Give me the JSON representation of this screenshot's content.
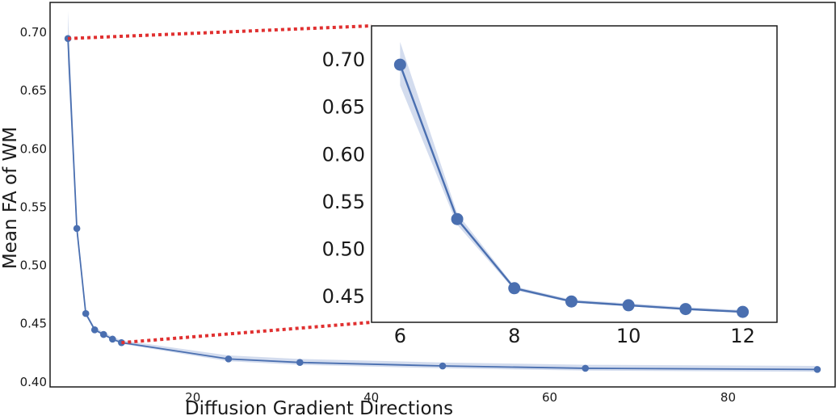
{
  "chart_data": {
    "type": "line",
    "xlabel": "Diffusion Gradient Directions",
    "ylabel": "Mean FA of WM",
    "xlim": [
      4,
      92
    ],
    "ylim": [
      0.395,
      0.725
    ],
    "x_ticks": [
      20,
      40,
      60,
      80
    ],
    "y_ticks": [
      0.4,
      0.45,
      0.5,
      0.55,
      0.6,
      0.65,
      0.7
    ],
    "grid": false,
    "series": [
      {
        "x": [
          6,
          7,
          8,
          9,
          10,
          11,
          12,
          24,
          32,
          48,
          64,
          90
        ],
        "y": [
          0.694,
          0.531,
          0.458,
          0.444,
          0.44,
          0.436,
          0.433,
          0.419,
          0.416,
          0.413,
          0.411,
          0.41
        ],
        "band_low": [
          0.672,
          0.525,
          0.456,
          0.443,
          0.439,
          0.435,
          0.432,
          0.417,
          0.414,
          0.411,
          0.409,
          0.408
        ],
        "band_high": [
          0.718,
          0.537,
          0.46,
          0.446,
          0.442,
          0.438,
          0.435,
          0.422,
          0.419,
          0.416,
          0.414,
          0.413
        ],
        "color": "#4a6fb0",
        "band_color": "#c8d3ea"
      }
    ],
    "inset": {
      "xlim": [
        5.5,
        12.6
      ],
      "ylim": [
        0.422,
        0.735
      ],
      "x_ticks": [
        6,
        8,
        10,
        12
      ],
      "y_ticks": [
        0.45,
        0.5,
        0.55,
        0.6,
        0.65,
        0.7
      ],
      "x_range_shown": [
        6,
        12
      ],
      "connector_color": "#e03030"
    }
  }
}
